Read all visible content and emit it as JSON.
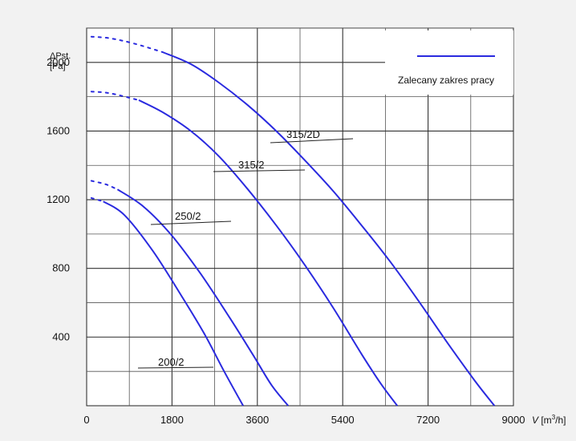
{
  "chart_data": {
    "type": "line",
    "ylabel_line1": "ΔPst.",
    "ylabel_line2": "[Pa]",
    "xlabel_var": "V",
    "xlabel_unit_pre": " [m",
    "xlabel_unit_sup": "3",
    "xlabel_unit_post": "/h]",
    "xlim": [
      0,
      9000
    ],
    "ylim": [
      0,
      2200
    ],
    "x_ticks": [
      "0",
      "1800",
      "3600",
      "5400",
      "7200",
      "9000"
    ],
    "y_ticks": [
      "400",
      "800",
      "1200",
      "1600",
      "2000"
    ],
    "grid": true,
    "legend": {
      "label": "Zalecany zakres pracy",
      "position": "top-right"
    },
    "line_color": "#2a2adf",
    "series": [
      {
        "name": "315/2D",
        "dashed_until": 1600,
        "x": [
          100,
          500,
          1000,
          1600,
          2200,
          2800,
          3400,
          4000,
          4600,
          5200,
          5800,
          6400,
          7000,
          7600,
          8200,
          8600
        ],
        "y": [
          2150,
          2140,
          2110,
          2060,
          1990,
          1880,
          1750,
          1600,
          1430,
          1250,
          1050,
          840,
          610,
          370,
          140,
          0
        ]
      },
      {
        "name": "315/2",
        "dashed_until": 1100,
        "x": [
          100,
          500,
          1100,
          1600,
          2200,
          2800,
          3400,
          4000,
          4600,
          5200,
          5800,
          6200,
          6550
        ],
        "y": [
          1830,
          1820,
          1780,
          1710,
          1600,
          1450,
          1260,
          1050,
          820,
          570,
          300,
          130,
          0
        ]
      },
      {
        "name": "250/2",
        "dashed_until": 650,
        "x": [
          100,
          400,
          650,
          1200,
          1800,
          2400,
          3000,
          3500,
          3900,
          4250
        ],
        "y": [
          1310,
          1290,
          1260,
          1160,
          990,
          770,
          520,
          300,
          120,
          0
        ]
      },
      {
        "name": "200/2",
        "dashed_until": 350,
        "x": [
          100,
          350,
          800,
          1400,
          2000,
          2500,
          2900,
          3300
        ],
        "y": [
          1210,
          1190,
          1110,
          900,
          640,
          410,
          200,
          0
        ]
      }
    ],
    "series_labels": [
      {
        "text": "315/2D",
        "series": "315/2D"
      },
      {
        "text": "315/2",
        "series": "315/2"
      },
      {
        "text": "250/2",
        "series": "250/2"
      },
      {
        "text": "200/2",
        "series": "200/2"
      }
    ]
  }
}
